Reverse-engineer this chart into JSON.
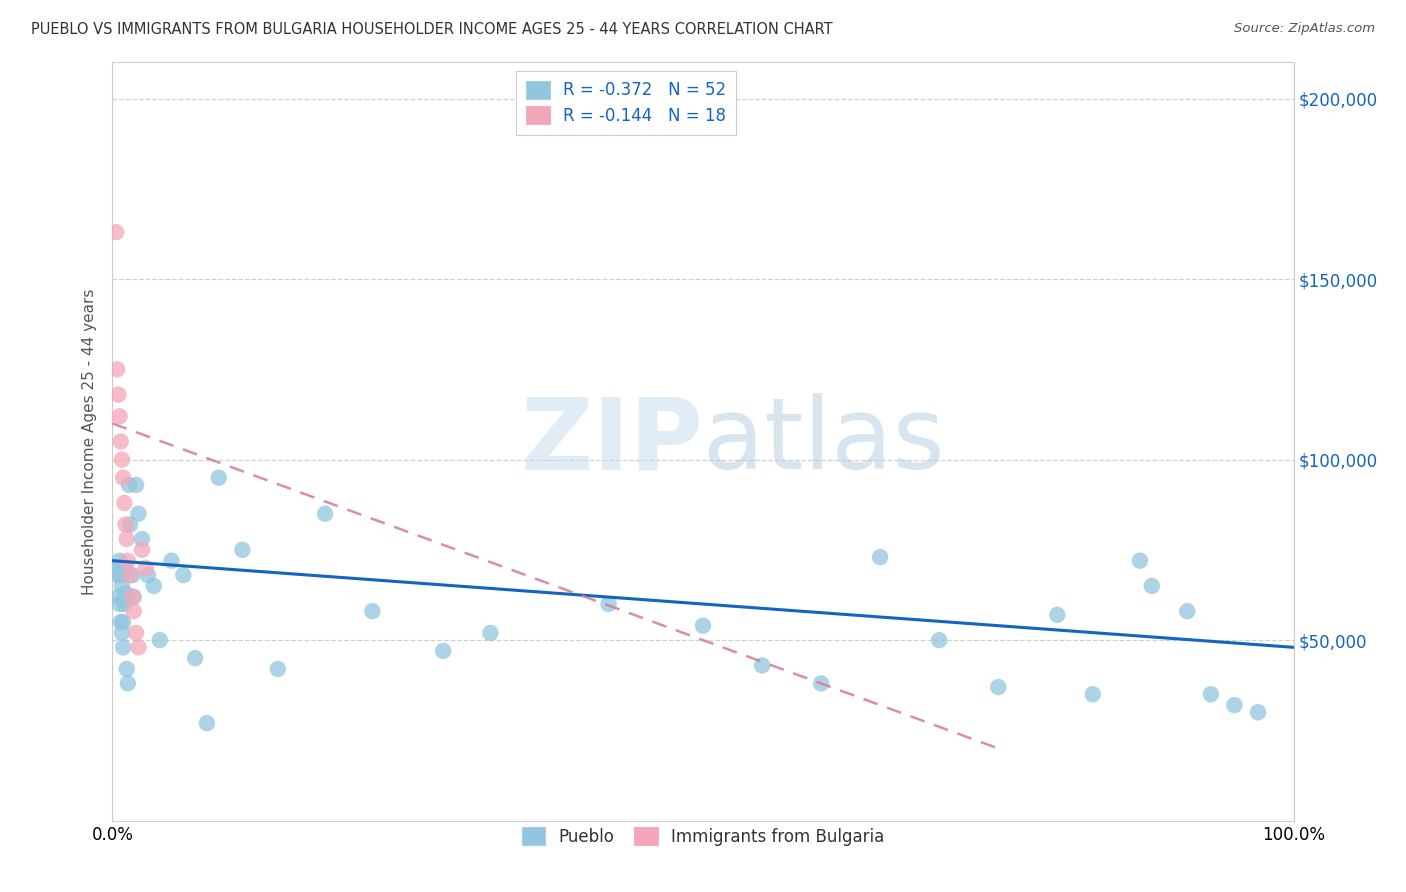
{
  "title": "PUEBLO VS IMMIGRANTS FROM BULGARIA HOUSEHOLDER INCOME AGES 25 - 44 YEARS CORRELATION CHART",
  "source_text": "Source: ZipAtlas.com",
  "ylabel": "Householder Income Ages 25 - 44 years",
  "xlim": [
    0,
    1.0
  ],
  "ylim": [
    0,
    210000
  ],
  "xtick_labels": [
    "0.0%",
    "100.0%"
  ],
  "ytick_labels": [
    "$50,000",
    "$100,000",
    "$150,000",
    "$200,000"
  ],
  "ytick_values": [
    50000,
    100000,
    150000,
    200000
  ],
  "legend_entry1": "R = -0.372   N = 52",
  "legend_entry2": "R = -0.144   N = 18",
  "pueblo_color": "#92c5de",
  "bulgaria_color": "#f4a6b8",
  "trendline_pueblo_color": "#1565c0",
  "trendline_bulgaria_color": "#d4799a",
  "watermark_zip": "ZIP",
  "watermark_atlas": "atlas",
  "background_color": "#ffffff",
  "grid_color": "#d0d0d0",
  "pueblo_x": [
    0.003,
    0.004,
    0.005,
    0.006,
    0.006,
    0.007,
    0.007,
    0.008,
    0.008,
    0.009,
    0.009,
    0.01,
    0.01,
    0.011,
    0.012,
    0.013,
    0.014,
    0.015,
    0.017,
    0.018,
    0.02,
    0.022,
    0.025,
    0.03,
    0.035,
    0.04,
    0.05,
    0.06,
    0.07,
    0.08,
    0.09,
    0.11,
    0.14,
    0.18,
    0.22,
    0.28,
    0.32,
    0.42,
    0.5,
    0.55,
    0.6,
    0.65,
    0.7,
    0.75,
    0.8,
    0.83,
    0.87,
    0.88,
    0.91,
    0.93,
    0.95,
    0.97
  ],
  "pueblo_y": [
    70000,
    68000,
    62000,
    72000,
    60000,
    68000,
    55000,
    52000,
    65000,
    55000,
    48000,
    70000,
    60000,
    63000,
    42000,
    38000,
    93000,
    82000,
    68000,
    62000,
    93000,
    85000,
    78000,
    68000,
    65000,
    50000,
    72000,
    68000,
    45000,
    27000,
    95000,
    75000,
    42000,
    85000,
    58000,
    47000,
    52000,
    60000,
    54000,
    43000,
    38000,
    73000,
    50000,
    37000,
    57000,
    35000,
    72000,
    65000,
    58000,
    35000,
    32000,
    30000
  ],
  "bulgaria_x": [
    0.003,
    0.004,
    0.005,
    0.006,
    0.007,
    0.008,
    0.009,
    0.01,
    0.011,
    0.012,
    0.013,
    0.015,
    0.017,
    0.018,
    0.02,
    0.022,
    0.025,
    0.028
  ],
  "bulgaria_y": [
    163000,
    125000,
    118000,
    112000,
    105000,
    100000,
    95000,
    88000,
    82000,
    78000,
    72000,
    68000,
    62000,
    58000,
    52000,
    48000,
    75000,
    70000
  ],
  "pueblo_trend_x": [
    0.0,
    1.0
  ],
  "pueblo_trend_y": [
    72000,
    48000
  ],
  "bulgaria_trend_x": [
    0.0,
    0.75
  ],
  "bulgaria_trend_y": [
    110000,
    20000
  ]
}
